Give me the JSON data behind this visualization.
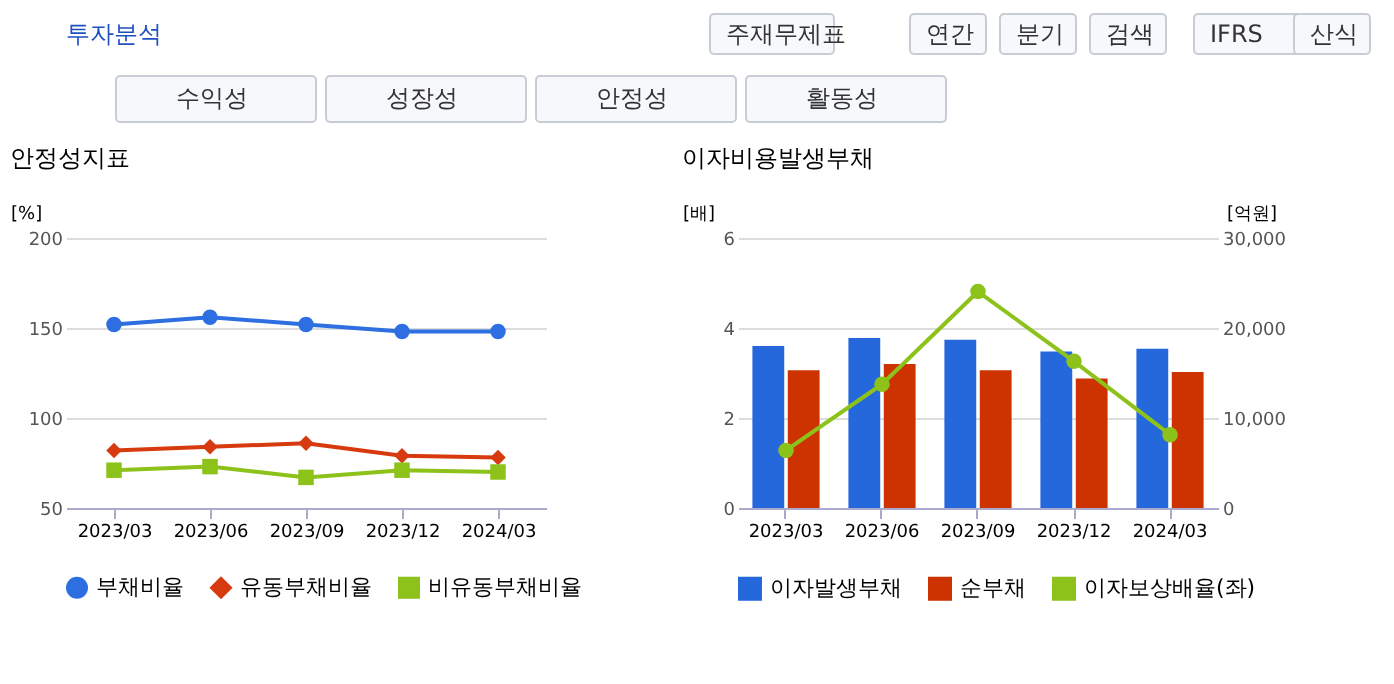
{
  "chart_data": [
    {
      "type": "other",
      "title": "투자분석",
      "annotations": [
        "주재무제표",
        "연간",
        "분기",
        "검색",
        "IFRS",
        "산식",
        "수익성",
        "성장성",
        "안정성",
        "활동성"
      ]
    },
    {
      "type": "line",
      "title": "안정성지표",
      "ylabel": "[%]",
      "categories": [
        "2023/03",
        "2023/06",
        "2023/09",
        "2023/12",
        "2024/03"
      ],
      "series": [
        {
          "name": "부채비율",
          "color": "#2d6fe0",
          "marker": "circle",
          "values": [
            152,
            156,
            152,
            148,
            148
          ]
        },
        {
          "name": "유동부채비율",
          "color": "#d83a10",
          "marker": "diamond",
          "values": [
            82,
            84,
            86,
            79,
            78
          ]
        },
        {
          "name": "비유동부채비율",
          "color": "#8cc21a",
          "marker": "square",
          "values": [
            71,
            73,
            67,
            71,
            70
          ]
        }
      ],
      "ylim": [
        50,
        200
      ],
      "yticks": [
        50,
        100,
        150,
        200
      ],
      "grid": "y",
      "legend": "bottom"
    },
    {
      "type": "bar",
      "title": "이자비용발생부채",
      "ylabel": "[배]",
      "y2label": "[억원]",
      "categories": [
        "2023/03",
        "2023/06",
        "2023/09",
        "2023/12",
        "2024/03"
      ],
      "series": [
        {
          "name": "이자발생부채",
          "color": "#2468dc",
          "axis": "y2",
          "values": [
            18000,
            18900,
            18700,
            17400,
            17700
          ]
        },
        {
          "name": "순부채",
          "color": "#cc3300",
          "axis": "y2",
          "values": [
            15300,
            16000,
            15300,
            14400,
            15100
          ]
        },
        {
          "name": "이자보상배율(좌)",
          "type": "line",
          "color": "#8cc21a",
          "marker": "circle",
          "values": [
            1.28,
            2.75,
            4.81,
            3.26,
            1.63
          ]
        }
      ],
      "stacked": false,
      "ylim": [
        0,
        6
      ],
      "yticks": [
        0,
        2,
        4,
        6
      ],
      "y2lim": [
        0,
        30000
      ],
      "y2ticks": [
        0,
        {
          "value": 10000,
          "label": "10,000"
        },
        {
          "value": 20000,
          "label": "20,000"
        },
        {
          "value": 30000,
          "label": "30,000"
        }
      ],
      "grid": "y",
      "legend": "bottom"
    }
  ]
}
